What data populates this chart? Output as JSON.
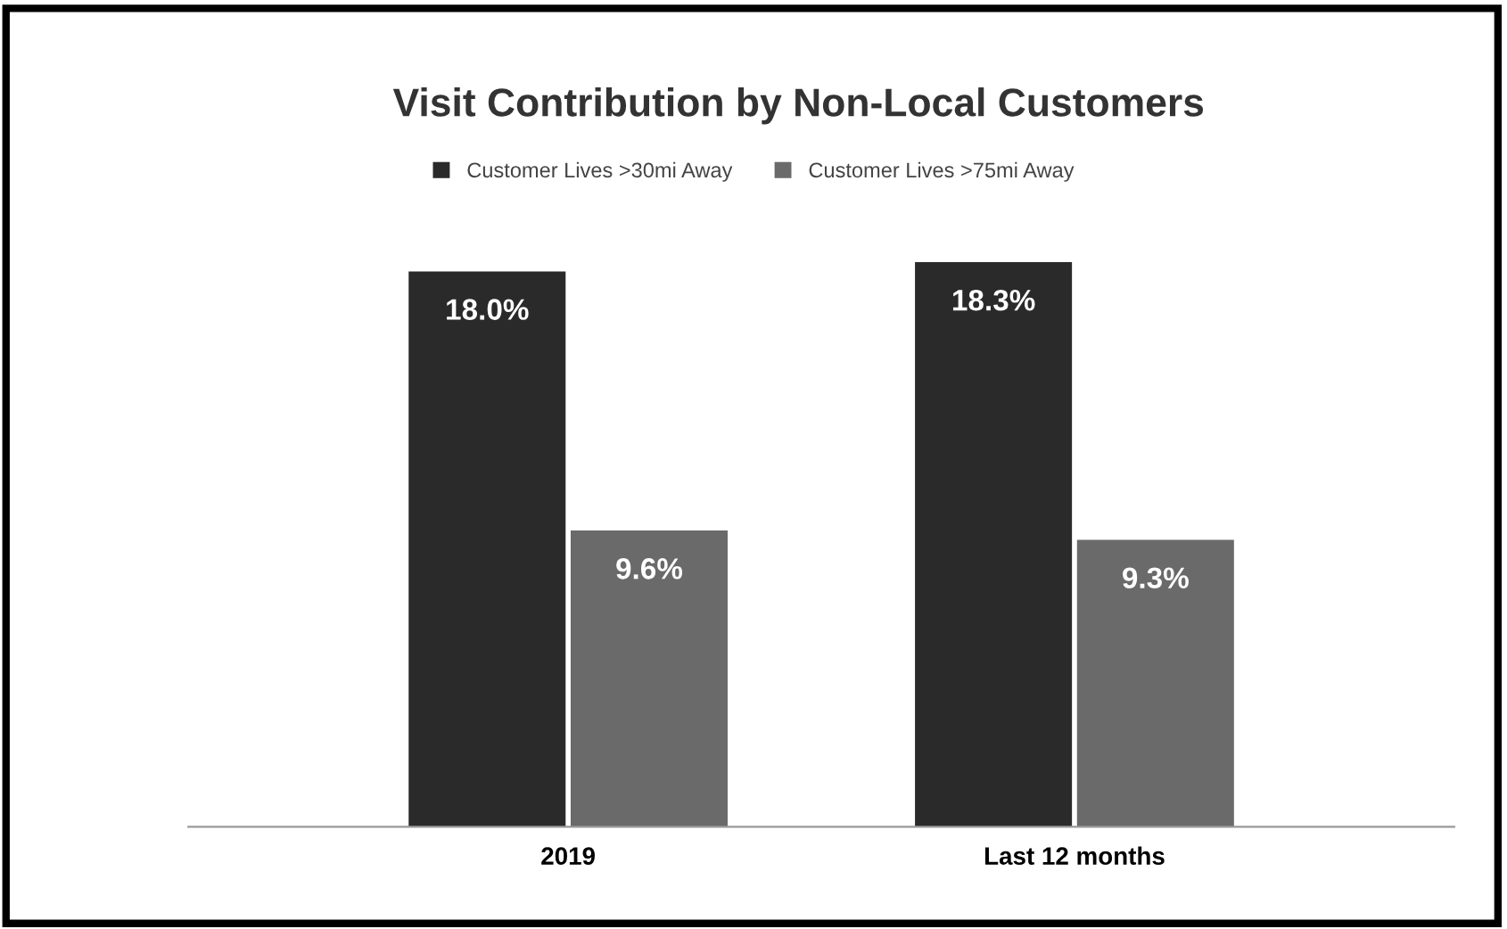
{
  "chart_data": {
    "type": "bar",
    "title": "Visit Contribution by Non-Local Customers",
    "categories": [
      "2019",
      "Last 12 months"
    ],
    "series": [
      {
        "name": "Customer Lives >30mi Away",
        "color": "#2a2a2a",
        "values": [
          18.0,
          18.3
        ],
        "value_labels": [
          "18.0%",
          "18.3%"
        ]
      },
      {
        "name": "Customer Lives >75mi Away",
        "color": "#6a6a6a",
        "values": [
          9.6,
          9.3
        ],
        "value_labels": [
          "9.6%",
          "9.3%"
        ]
      }
    ],
    "legend": "top",
    "grid": false
  }
}
